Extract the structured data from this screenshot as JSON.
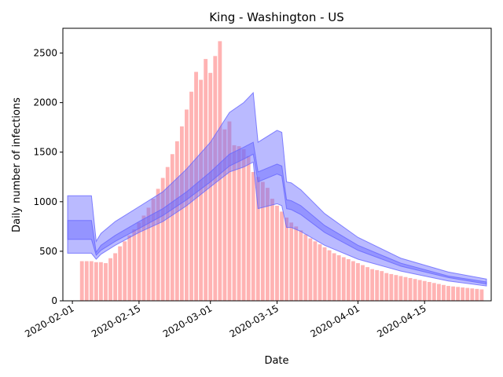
{
  "chart_data": {
    "type": "bar",
    "title": "King - Washington - US",
    "xlabel": "Date",
    "ylabel": "Daily number of infections",
    "x_start": "2020-01-31",
    "xlim": [
      "2020-01-30",
      "2020-04-29"
    ],
    "ylim": [
      0,
      2750
    ],
    "x_ticks": [
      {
        "label": "2020-02-01",
        "date": "2020-02-01"
      },
      {
        "label": "2020-02-15",
        "date": "2020-02-15"
      },
      {
        "label": "2020-03-01",
        "date": "2020-03-01"
      },
      {
        "label": "2020-03-15",
        "date": "2020-03-15"
      },
      {
        "label": "2020-04-01",
        "date": "2020-04-01"
      },
      {
        "label": "2020-04-15",
        "date": "2020-04-15"
      }
    ],
    "y_ticks": [
      0,
      500,
      1000,
      1500,
      2000,
      2500
    ],
    "bar_color": "#ffb3b3",
    "band_color": "#6666ff",
    "bars_start": "2020-02-03",
    "bars": [
      400,
      400,
      400,
      390,
      390,
      380,
      430,
      480,
      550,
      600,
      660,
      720,
      790,
      860,
      940,
      1030,
      1130,
      1240,
      1350,
      1480,
      1610,
      1760,
      1930,
      2110,
      2310,
      2230,
      2440,
      2300,
      2470,
      2620,
      1730,
      1810,
      1570,
      1560,
      1530,
      1460,
      1300,
      1250,
      1200,
      1140,
      1030,
      960,
      900,
      840,
      790,
      750,
      710,
      670,
      630,
      600,
      570,
      540,
      510,
      480,
      460,
      440,
      420,
      400,
      380,
      360,
      340,
      320,
      310,
      300,
      280,
      270,
      260,
      250,
      240,
      230,
      220,
      210,
      200,
      190,
      180,
      170,
      160,
      150,
      145,
      140,
      135,
      130,
      125,
      120,
      115
    ],
    "bands": [
      {
        "name": "outer",
        "x": [
          "2020-01-31",
          "2020-02-03",
          "2020-02-05",
          "2020-02-06",
          "2020-02-07",
          "2020-02-10",
          "2020-02-15",
          "2020-02-20",
          "2020-02-25",
          "2020-03-01",
          "2020-03-05",
          "2020-03-08",
          "2020-03-10",
          "2020-03-11",
          "2020-03-15",
          "2020-03-16",
          "2020-03-17",
          "2020-03-18",
          "2020-03-20",
          "2020-03-25",
          "2020-04-01",
          "2020-04-10",
          "2020-04-20",
          "2020-04-28"
        ],
        "upper": [
          1060,
          1060,
          1060,
          600,
          680,
          800,
          950,
          1100,
          1330,
          1600,
          1900,
          2000,
          2100,
          1600,
          1720,
          1700,
          1200,
          1190,
          1120,
          880,
          640,
          430,
          290,
          220
        ],
        "lower": [
          480,
          480,
          480,
          420,
          470,
          560,
          690,
          800,
          960,
          1150,
          1300,
          1350,
          1400,
          930,
          980,
          960,
          740,
          740,
          700,
          560,
          420,
          300,
          200,
          150
        ]
      },
      {
        "name": "inner",
        "x": [
          "2020-01-31",
          "2020-02-03",
          "2020-02-05",
          "2020-02-06",
          "2020-02-07",
          "2020-02-10",
          "2020-02-15",
          "2020-02-20",
          "2020-02-25",
          "2020-03-01",
          "2020-03-05",
          "2020-03-08",
          "2020-03-10",
          "2020-03-11",
          "2020-03-15",
          "2020-03-16",
          "2020-03-17",
          "2020-03-18",
          "2020-03-20",
          "2020-03-25",
          "2020-04-01",
          "2020-04-10",
          "2020-04-20",
          "2020-04-28"
        ],
        "upper": [
          810,
          810,
          810,
          490,
          560,
          660,
          800,
          930,
          1100,
          1300,
          1480,
          1550,
          1600,
          1300,
          1380,
          1360,
          1020,
          1010,
          960,
          760,
          560,
          380,
          250,
          190
        ],
        "lower": [
          620,
          620,
          620,
          460,
          510,
          600,
          730,
          860,
          1020,
          1200,
          1360,
          1430,
          1480,
          1200,
          1280,
          1260,
          930,
          920,
          870,
          690,
          510,
          350,
          235,
          170
        ]
      }
    ]
  }
}
